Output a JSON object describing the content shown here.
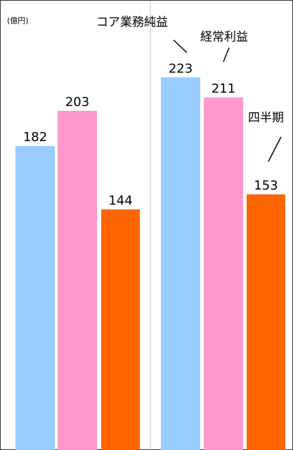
{
  "unit_label": "(億円)",
  "colors": {
    "core_business_profit": "#99CCFF",
    "ordinary_profit": "#FF99CC",
    "net_income": "#FF6600",
    "border": "#333333",
    "divider": "#BBBBBB"
  },
  "chart_data": {
    "type": "bar",
    "groups": [
      {
        "values": [
          182,
          203,
          144
        ]
      },
      {
        "values": [
          223,
          211,
          153
        ]
      }
    ],
    "series": [
      {
        "name": "コア業務純益"
      },
      {
        "name": "経常利益"
      },
      {
        "name": "四半期"
      }
    ],
    "value_labels": {
      "g0": [
        "182",
        "203",
        "144"
      ],
      "g1": [
        "223",
        "211",
        "153"
      ]
    },
    "ylabel": "(億円)",
    "axis_visible": false,
    "legend": "callouts on right group"
  }
}
